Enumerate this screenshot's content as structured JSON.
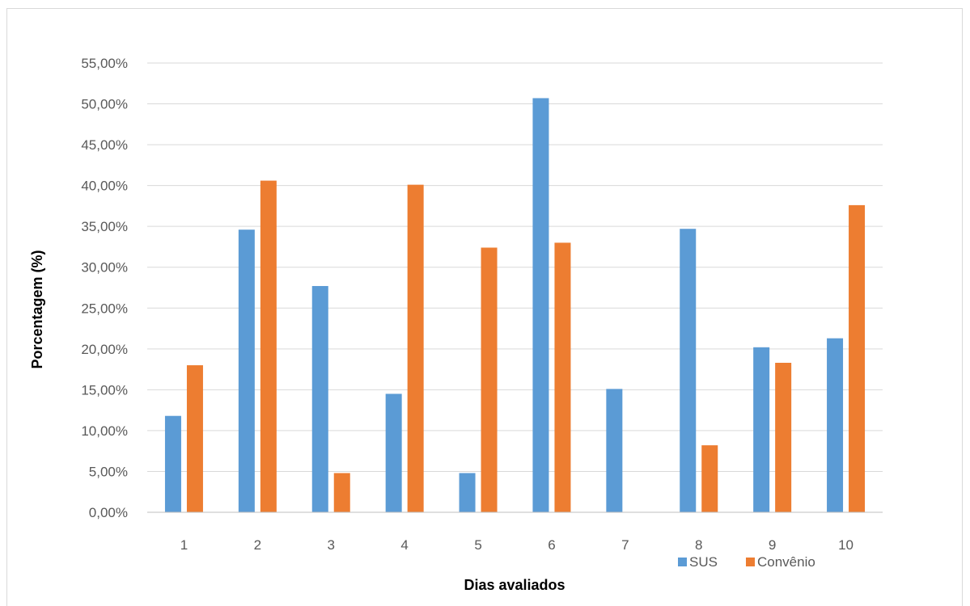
{
  "chart_data": {
    "type": "bar",
    "title": "",
    "xlabel": "Dias avaliados",
    "ylabel": "Porcentagem (%)",
    "categories": [
      "1",
      "2",
      "3",
      "4",
      "5",
      "6",
      "7",
      "8",
      "9",
      "10"
    ],
    "series": [
      {
        "name": "SUS",
        "color": "#5b9bd5",
        "values": [
          0.118,
          0.346,
          0.277,
          0.145,
          0.048,
          0.507,
          0.151,
          0.347,
          0.202,
          0.213
        ]
      },
      {
        "name": "Convênio",
        "color": "#ed7d31",
        "values": [
          0.18,
          0.406,
          0.048,
          0.401,
          0.324,
          0.33,
          0.0,
          0.082,
          0.183,
          0.376
        ]
      }
    ],
    "ylim": [
      0,
      0.55
    ],
    "yticks": [
      0,
      0.05,
      0.1,
      0.15,
      0.2,
      0.25,
      0.3,
      0.35,
      0.4,
      0.45,
      0.5,
      0.55
    ],
    "ytick_labels": [
      "0,00%",
      "5,00%",
      "10,00%",
      "15,00%",
      "20,00%",
      "25,00%",
      "30,00%",
      "35,00%",
      "40,00%",
      "45,00%",
      "50,00%",
      "55,00%"
    ],
    "grid": true,
    "legend_position": "bottom-right"
  }
}
